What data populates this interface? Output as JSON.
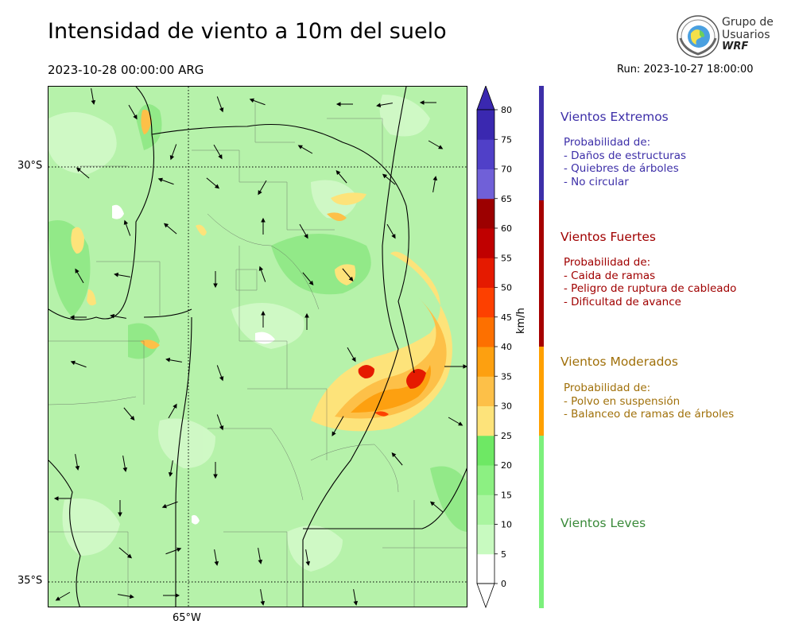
{
  "header": {
    "title": "Intensidad de viento a 10m del suelo",
    "valid_time": "2023-10-28 00:00:00 ARG",
    "run": "Run: 2023-10-27 18:00:00"
  },
  "logo": {
    "line1": "Grupo de",
    "line2": "Usuarios",
    "line3": "WRF",
    "icon": "globe-seal-icon"
  },
  "map": {
    "lat_labels": [
      "30°S",
      "35°S"
    ],
    "lon_labels": [
      "65°W"
    ]
  },
  "colorbar": {
    "unit": "km/h",
    "ticks": [
      "0",
      "5",
      "10",
      "15",
      "20",
      "25",
      "30",
      "35",
      "40",
      "45",
      "50",
      "55",
      "60",
      "65",
      "70",
      "75",
      "80"
    ],
    "colors": [
      "#ffffff",
      "#c8fac0",
      "#aaf5a0",
      "#8cf082",
      "#6ee864",
      "#fde37a",
      "#fdc048",
      "#fda010",
      "#fd7000",
      "#fd4000",
      "#e51a00",
      "#c00000",
      "#9c0000",
      "#7060d8",
      "#5040c8",
      "#3a28b0"
    ],
    "under_color": "#ffffff",
    "over_color": "#3a28b0"
  },
  "legend": [
    {
      "title": "Vientos Extremos",
      "color": "#3d2fa8",
      "text_color": "#3d2fa8",
      "desc": [
        "Probabilidad de:",
        "- Daños de estructuras",
        "- Quiebres de árboles",
        "- No circular"
      ]
    },
    {
      "title": "Vientos Fuertes",
      "color": "#a60000",
      "text_color": "#a00000",
      "desc": [
        "Probabilidad de:",
        "- Caida de ramas",
        "- Peligro de ruptura de cableado",
        "- Dificultad de avance"
      ]
    },
    {
      "title": "Vientos Moderados",
      "color": "#ffa000",
      "text_color": "#a0700a",
      "desc": [
        "Probabilidad de:",
        "- Polvo en suspensión",
        "- Balanceo de ramas de árboles"
      ]
    },
    {
      "title": "Vientos Leves",
      "color": "#7cf07c",
      "text_color": "#3a8a3a",
      "desc": []
    }
  ]
}
